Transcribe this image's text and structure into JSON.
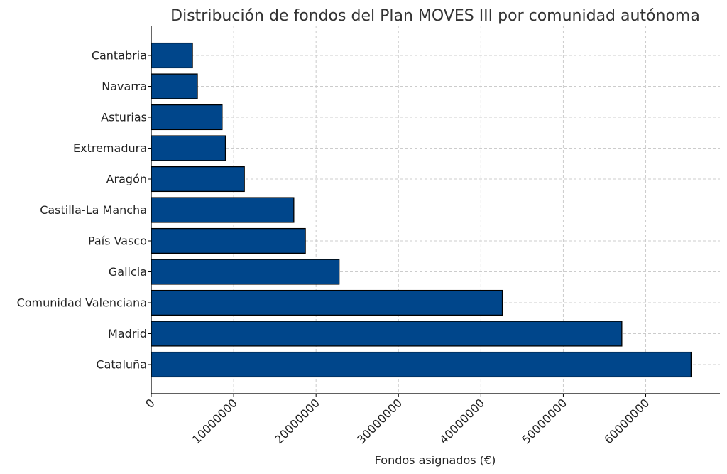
{
  "chart_data": {
    "type": "bar",
    "orientation": "horizontal",
    "title": "Distribución de fondos del Plan MOVES III por comunidad autónoma",
    "xlabel": "Fondos asignados (€)",
    "ylabel": "",
    "categories": [
      "Cataluña",
      "Madrid",
      "Comunidad Valenciana",
      "Galicia",
      "País Vasco",
      "Castilla-La Mancha",
      "Aragón",
      "Extremadura",
      "Asturias",
      "Navarra",
      "Cantabria"
    ],
    "values": [
      65500000,
      57100000,
      42600000,
      22800000,
      18700000,
      17300000,
      11300000,
      9000000,
      8600000,
      5600000,
      5000000
    ],
    "xlim": [
      0,
      69000000
    ],
    "xticks": [
      0,
      10000000,
      20000000,
      30000000,
      40000000,
      50000000,
      60000000
    ],
    "xtick_labels": [
      "0",
      "10000000",
      "20000000",
      "30000000",
      "40000000",
      "50000000",
      "60000000"
    ],
    "bar_color": "#00468b",
    "grid": true
  }
}
